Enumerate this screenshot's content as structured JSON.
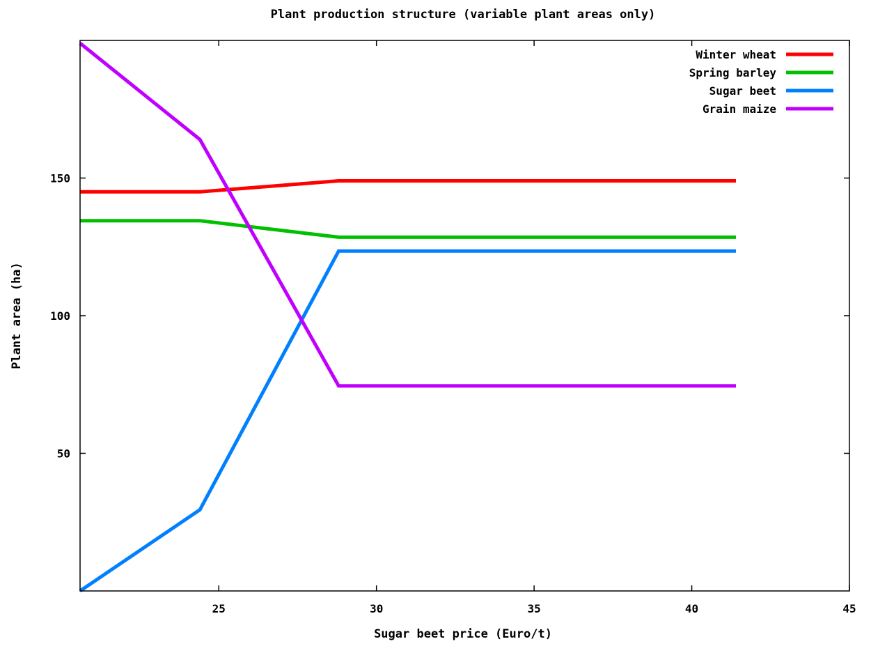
{
  "chart_data": {
    "type": "line",
    "title": "Plant production structure (variable plant areas only)",
    "xlabel": "Sugar beet price (Euro/t)",
    "ylabel": "Plant area (ha)",
    "xlim": [
      20.6,
      45
    ],
    "ylim": [
      0,
      200
    ],
    "xticks": [
      25,
      30,
      35,
      40,
      45
    ],
    "yticks": [
      50,
      100,
      150
    ],
    "grid": false,
    "legend_position": "top-right",
    "series": [
      {
        "name": "Winter wheat",
        "color": "#ff0000",
        "x": [
          20.6,
          24.4,
          28.8,
          41.4
        ],
        "y": [
          145,
          145,
          149,
          149
        ]
      },
      {
        "name": "Spring barley",
        "color": "#00c000",
        "x": [
          20.6,
          24.4,
          28.8,
          41.4
        ],
        "y": [
          134.5,
          134.5,
          128.5,
          128.5
        ]
      },
      {
        "name": "Sugar beet",
        "color": "#0080ff",
        "x": [
          20.6,
          24.4,
          28.8,
          41.4
        ],
        "y": [
          0,
          29.5,
          123.5,
          123.5
        ]
      },
      {
        "name": "Grain maize",
        "color": "#c000ff",
        "x": [
          20.6,
          24.4,
          28.8,
          41.4
        ],
        "y": [
          199,
          164,
          74.5,
          74.5
        ]
      }
    ]
  }
}
